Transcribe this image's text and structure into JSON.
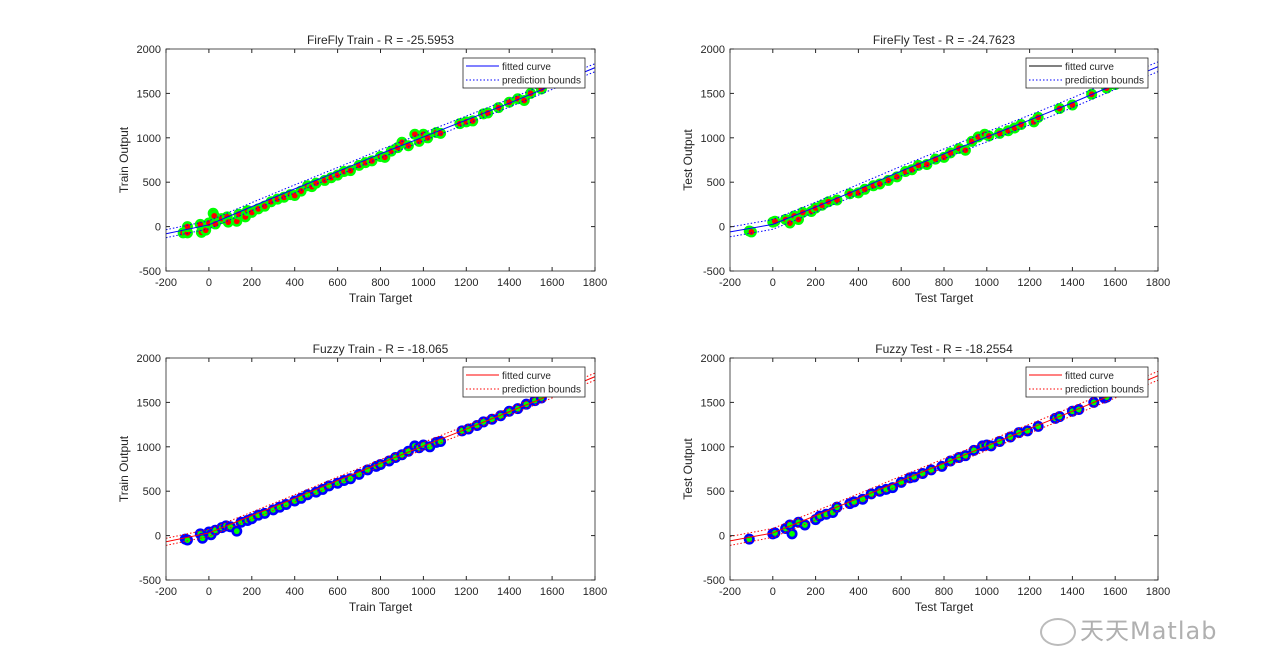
{
  "chart_data": [
    {
      "type": "scatter",
      "title": "FireFly Train - R =  -25.5953",
      "xlabel": "Train Target",
      "ylabel": "Train Output",
      "xlim": [
        -200,
        1800
      ],
      "ylim": [
        -500,
        2000
      ],
      "xticks": [
        "-200",
        "0",
        "200",
        "400",
        "600",
        "800",
        "1000",
        "1200",
        "1400",
        "1600",
        "1800"
      ],
      "yticks": [
        "-500",
        "0",
        "500",
        "1000",
        "1500",
        "2000"
      ],
      "legend": {
        "position": "top-right",
        "entries": [
          "fitted curve",
          "prediction bounds"
        ],
        "line_color": "#0000ff",
        "bounds_color": "#0000ff"
      },
      "curve_color": "#0000ff",
      "bounds_color": "#0000ff",
      "marker_edge": "#00ff00",
      "marker_face": "#ff0000",
      "fitted_curve": {
        "x": [
          -200,
          0,
          200,
          400,
          600,
          800,
          1000,
          1200,
          1400,
          1600,
          1800
        ],
        "y": [
          -80,
          20,
          225,
          425,
          620,
          820,
          1010,
          1200,
          1390,
          1590,
          1790
        ]
      },
      "bounds_halfwidth": 45,
      "points": {
        "x": [
          -120,
          -100,
          -100,
          -40,
          -35,
          -15,
          0,
          20,
          25,
          30,
          60,
          85,
          90,
          130,
          140,
          170,
          180,
          200,
          230,
          260,
          290,
          320,
          350,
          380,
          400,
          430,
          460,
          480,
          500,
          540,
          570,
          600,
          630,
          660,
          700,
          730,
          760,
          800,
          820,
          850,
          880,
          900,
          930,
          960,
          980,
          1000,
          1020,
          1060,
          1080,
          1170,
          1200,
          1230,
          1280,
          1300,
          1350,
          1400,
          1440,
          1470,
          1500,
          1550
        ],
        "y": [
          -70,
          -70,
          0,
          25,
          -65,
          -40,
          40,
          150,
          120,
          30,
          90,
          110,
          50,
          60,
          140,
          110,
          180,
          160,
          200,
          230,
          280,
          310,
          330,
          360,
          350,
          400,
          460,
          450,
          490,
          520,
          550,
          580,
          620,
          630,
          690,
          720,
          740,
          790,
          780,
          850,
          890,
          950,
          910,
          1040,
          960,
          1040,
          1000,
          1060,
          1050,
          1160,
          1180,
          1190,
          1270,
          1280,
          1340,
          1400,
          1440,
          1420,
          1500,
          1550
        ]
      }
    },
    {
      "type": "scatter",
      "title": "FireFly Test - R =  -24.7623",
      "xlabel": "Test Target",
      "ylabel": "Test Output",
      "xlim": [
        -200,
        1800
      ],
      "ylim": [
        -500,
        2000
      ],
      "xticks": [
        "-200",
        "0",
        "200",
        "400",
        "600",
        "800",
        "1000",
        "1200",
        "1400",
        "1600",
        "1800"
      ],
      "yticks": [
        "-500",
        "0",
        "500",
        "1000",
        "1500",
        "2000"
      ],
      "legend": {
        "position": "top-right",
        "entries": [
          "fitted curve",
          "prediction bounds"
        ],
        "line_color": "#000000",
        "bounds_color": "#0000ff"
      },
      "curve_color": "#0000ff",
      "bounds_color": "#0000ff",
      "marker_edge": "#00ff00",
      "marker_face": "#ff0000",
      "fitted_curve": {
        "x": [
          -200,
          0,
          200,
          400,
          600,
          800,
          1000,
          1200,
          1400,
          1600,
          1800
        ],
        "y": [
          -60,
          25,
          220,
          420,
          625,
          820,
          1010,
          1200,
          1395,
          1600,
          1800
        ]
      },
      "bounds_halfwidth": 55,
      "points": {
        "x": [
          -110,
          -100,
          0,
          10,
          60,
          80,
          100,
          120,
          140,
          180,
          200,
          230,
          260,
          300,
          360,
          400,
          430,
          470,
          500,
          540,
          580,
          620,
          650,
          680,
          720,
          760,
          800,
          830,
          870,
          900,
          930,
          960,
          990,
          1010,
          1060,
          1100,
          1130,
          1160,
          1220,
          1240,
          1340,
          1400,
          1490,
          1560,
          1600,
          1640,
          1680
        ],
        "y": [
          -50,
          -60,
          50,
          60,
          80,
          40,
          120,
          80,
          160,
          170,
          210,
          240,
          280,
          300,
          370,
          380,
          420,
          460,
          480,
          520,
          560,
          620,
          640,
          690,
          700,
          760,
          780,
          830,
          880,
          860,
          960,
          1010,
          1040,
          1020,
          1050,
          1080,
          1110,
          1150,
          1180,
          1230,
          1330,
          1370,
          1490,
          1560,
          1600,
          1620,
          1660
        ]
      }
    },
    {
      "type": "scatter",
      "title": "Fuzzy Train - R =  -18.065",
      "xlabel": "Train Target",
      "ylabel": "Train Output",
      "xlim": [
        -200,
        1800
      ],
      "ylim": [
        -500,
        2000
      ],
      "xticks": [
        "-200",
        "0",
        "200",
        "400",
        "600",
        "800",
        "1000",
        "1200",
        "1400",
        "1600",
        "1800"
      ],
      "yticks": [
        "-500",
        "0",
        "500",
        "1000",
        "1500",
        "2000"
      ],
      "legend": {
        "position": "top-right",
        "entries": [
          "fitted curve",
          "prediction bounds"
        ],
        "line_color": "#ff0000",
        "bounds_color": "#ff0000"
      },
      "curve_color": "#ff0000",
      "bounds_color": "#ff0000",
      "marker_edge": "#0000ff",
      "marker_face": "#00ff00",
      "fitted_curve": {
        "x": [
          -200,
          0,
          200,
          400,
          600,
          800,
          1000,
          1200,
          1400,
          1600,
          1800
        ],
        "y": [
          -70,
          30,
          225,
          420,
          620,
          815,
          1010,
          1200,
          1395,
          1590,
          1790
        ]
      },
      "bounds_halfwidth": 40,
      "points": {
        "x": [
          -110,
          -100,
          -40,
          -30,
          0,
          10,
          30,
          60,
          80,
          100,
          130,
          150,
          180,
          200,
          230,
          260,
          300,
          330,
          360,
          400,
          430,
          460,
          500,
          530,
          560,
          600,
          630,
          660,
          700,
          740,
          780,
          800,
          840,
          870,
          900,
          930,
          960,
          980,
          1000,
          1030,
          1060,
          1080,
          1180,
          1210,
          1250,
          1280,
          1320,
          1360,
          1400,
          1440,
          1480,
          1520,
          1550
        ],
        "y": [
          -40,
          -50,
          20,
          -30,
          40,
          10,
          60,
          90,
          110,
          100,
          50,
          150,
          170,
          190,
          230,
          250,
          290,
          320,
          350,
          390,
          420,
          460,
          490,
          520,
          560,
          590,
          620,
          640,
          690,
          740,
          780,
          800,
          840,
          880,
          910,
          950,
          1010,
          990,
          1020,
          1000,
          1050,
          1060,
          1180,
          1200,
          1240,
          1280,
          1310,
          1350,
          1400,
          1430,
          1480,
          1520,
          1550
        ]
      }
    },
    {
      "type": "scatter",
      "title": "Fuzzy Test - R =  -18.2554",
      "xlabel": "Test Target",
      "ylabel": "Test Output",
      "xlim": [
        -200,
        1800
      ],
      "ylim": [
        -500,
        2000
      ],
      "xticks": [
        "-200",
        "0",
        "200",
        "400",
        "600",
        "800",
        "1000",
        "1200",
        "1400",
        "1600",
        "1800"
      ],
      "yticks": [
        "-500",
        "0",
        "500",
        "1000",
        "1500",
        "2000"
      ],
      "legend": {
        "position": "top-right",
        "entries": [
          "fitted curve",
          "prediction bounds"
        ],
        "line_color": "#ff0000",
        "bounds_color": "#ff0000"
      },
      "curve_color": "#ff0000",
      "bounds_color": "#ff0000",
      "marker_edge": "#0000ff",
      "marker_face": "#00ff00",
      "fitted_curve": {
        "x": [
          -200,
          0,
          200,
          400,
          600,
          800,
          1000,
          1200,
          1400,
          1600,
          1800
        ],
        "y": [
          -60,
          30,
          225,
          420,
          620,
          815,
          1010,
          1205,
          1400,
          1600,
          1800
        ]
      },
      "bounds_halfwidth": 50,
      "points": {
        "x": [
          -110,
          0,
          10,
          60,
          80,
          90,
          120,
          150,
          200,
          220,
          250,
          280,
          300,
          360,
          380,
          420,
          460,
          500,
          530,
          560,
          600,
          640,
          660,
          700,
          740,
          790,
          830,
          870,
          900,
          940,
          980,
          1000,
          1020,
          1060,
          1110,
          1150,
          1190,
          1240,
          1320,
          1340,
          1400,
          1430,
          1500,
          1550,
          1560
        ],
        "y": [
          -40,
          20,
          30,
          80,
          120,
          20,
          150,
          120,
          180,
          220,
          240,
          260,
          320,
          360,
          380,
          410,
          470,
          500,
          520,
          540,
          600,
          650,
          660,
          700,
          740,
          780,
          840,
          880,
          900,
          960,
          1010,
          1020,
          1010,
          1060,
          1110,
          1160,
          1180,
          1230,
          1320,
          1340,
          1400,
          1420,
          1500,
          1550,
          1560
        ]
      }
    }
  ],
  "watermark": "天天Matlab"
}
